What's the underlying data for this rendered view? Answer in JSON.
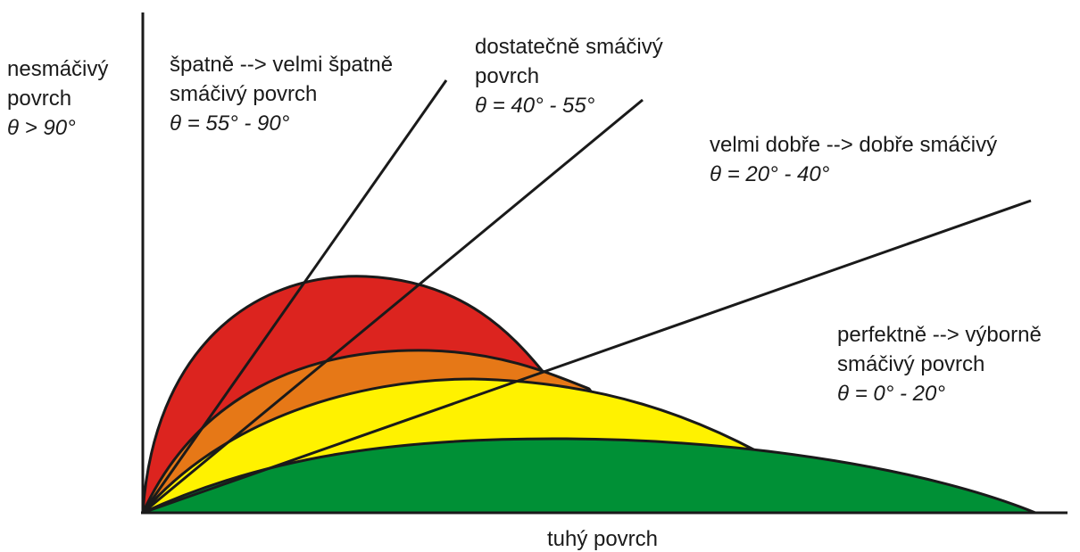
{
  "regions": [
    {
      "lines": [
        "nesmáčivý",
        "povrch"
      ],
      "angle": "θ  > 90°"
    },
    {
      "lines": [
        "špatně --> velmi špatně",
        "smáčivý povrch"
      ],
      "angle": "θ  = 55° -  90°"
    },
    {
      "lines": [
        "dostatečně smáčivý",
        "povrch"
      ],
      "angle": "θ  = 40° -  55°"
    },
    {
      "lines": [
        "velmi dobře --> dobře smáčivý"
      ],
      "angle": "θ  = 20° -  40°"
    },
    {
      "lines": [
        "perfektně --> výborně",
        "smáčivý povrch"
      ],
      "angle": "θ  = 0° - 20°"
    }
  ],
  "axis_label": "tuhý povrch"
}
